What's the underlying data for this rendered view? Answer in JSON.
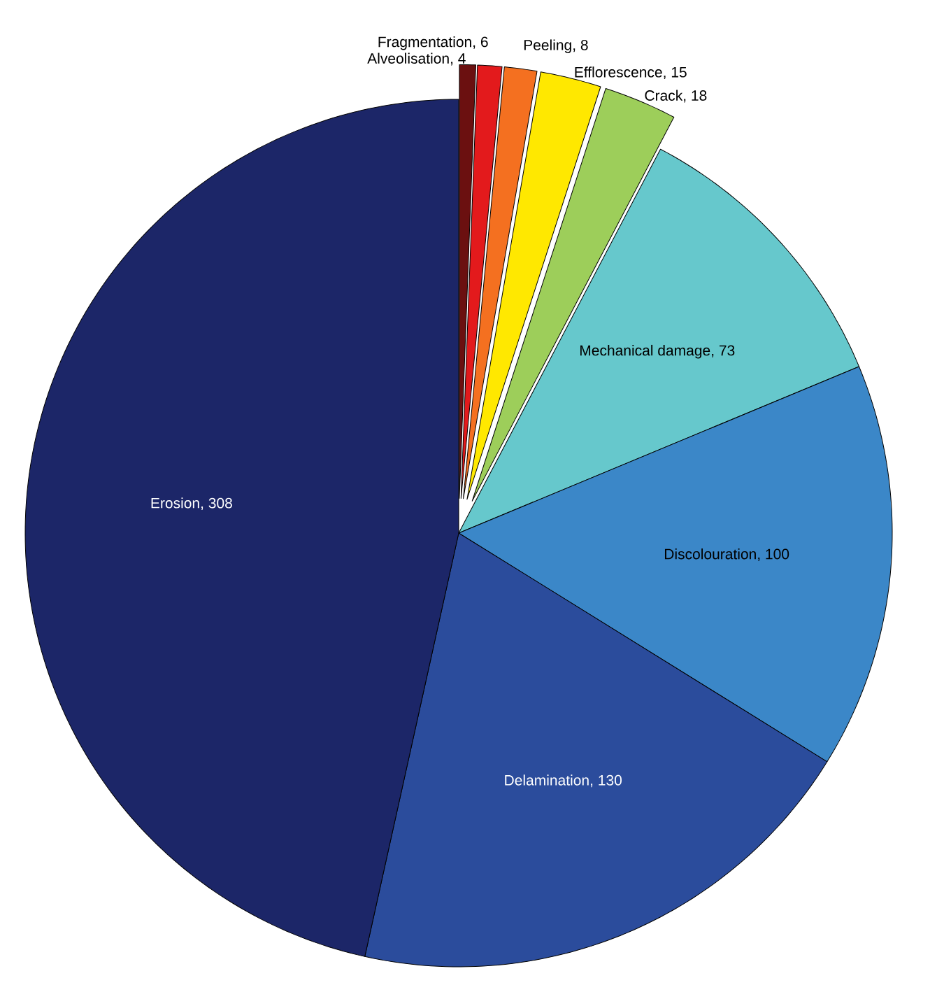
{
  "chart_data": {
    "type": "pie",
    "categories": [
      "Alveolisation",
      "Fragmentation",
      "Peeling",
      "Efflorescence",
      "Crack",
      "Mechanical damage",
      "Discolouration",
      "Delamination",
      "Erosion"
    ],
    "values": [
      4,
      6,
      8,
      15,
      18,
      73,
      100,
      130,
      308
    ],
    "colors": [
      "#6b1010",
      "#e31a1c",
      "#f47020",
      "#ffe800",
      "#9dce5a",
      "#66c8cc",
      "#3b87c8",
      "#2b4c9c",
      "#1c2668"
    ],
    "value_labels": [
      ", 4",
      ", 6",
      ", 8",
      ", 15",
      ", 18",
      ", 73",
      ", 100",
      ", 130",
      ", 308"
    ],
    "data_labels": true
  }
}
